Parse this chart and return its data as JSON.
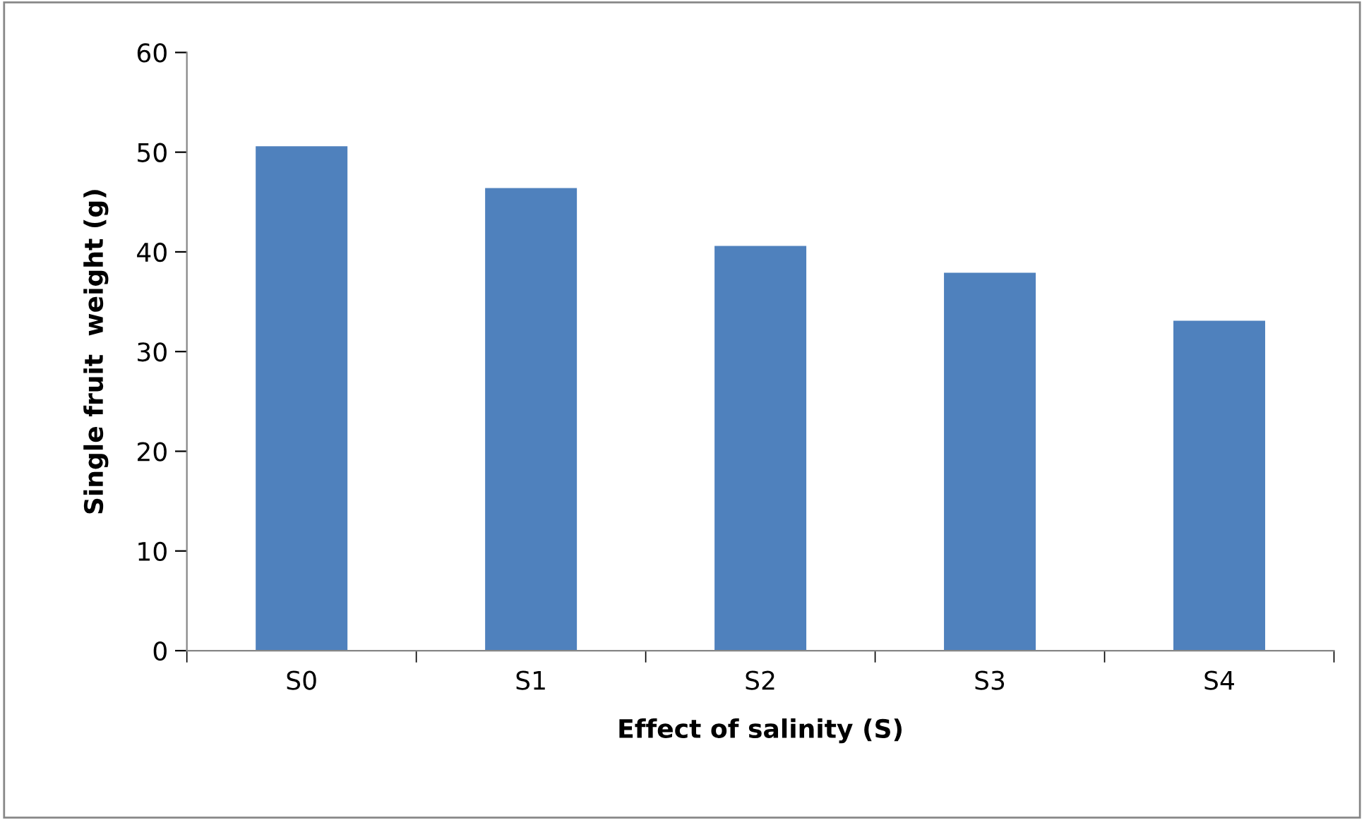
{
  "chart_data": {
    "type": "bar",
    "xlabel": "Effect of salinity (S)",
    "ylabel": "Single fruit  weight (g)",
    "categories": [
      "S0",
      "S1",
      "S2",
      "S3",
      "S4"
    ],
    "values": [
      50.6,
      46.4,
      40.6,
      37.9,
      33.1
    ],
    "color": "#4f81bd",
    "ylim": [
      0,
      60
    ],
    "yticks": [
      0,
      10,
      20,
      30,
      40,
      50,
      60
    ],
    "grid": false,
    "legend": false
  }
}
